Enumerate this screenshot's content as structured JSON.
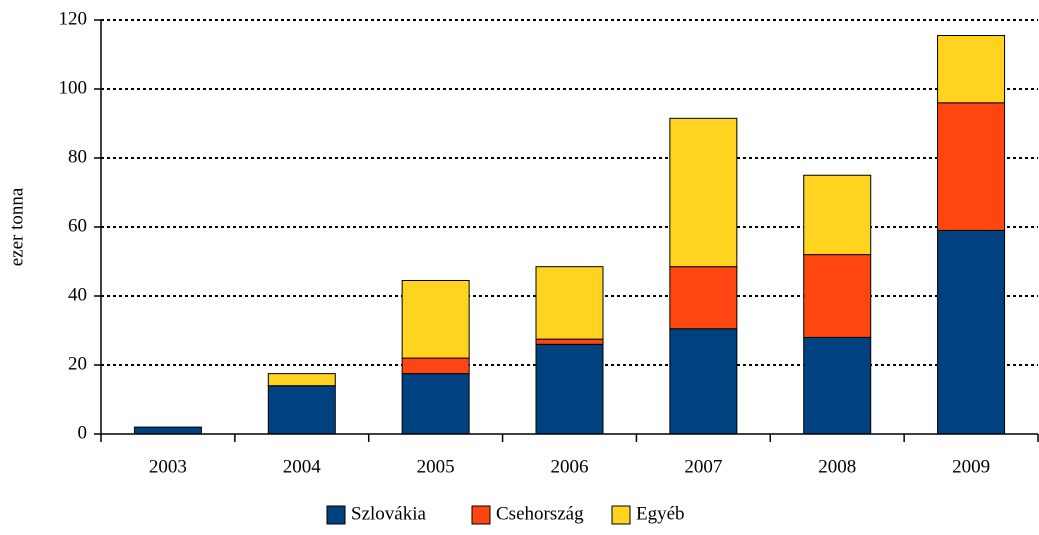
{
  "chart_data": {
    "type": "stacked-bar",
    "y_label": "ezer tonna",
    "categories": [
      "2003",
      "2004",
      "2005",
      "2006",
      "2007",
      "2008",
      "2009"
    ],
    "series": [
      {
        "name": "Szlovákia",
        "color": "#00427f",
        "values": [
          2,
          14,
          17.5,
          26,
          30.5,
          28,
          59
        ]
      },
      {
        "name": "Csehország",
        "color": "#ff4611",
        "values": [
          0,
          0,
          4.5,
          1.5,
          18,
          24,
          37
        ]
      },
      {
        "name": "Egyéb",
        "color": "#ffd320",
        "values": [
          0,
          3.5,
          22.5,
          21,
          43,
          23,
          19.5
        ]
      }
    ],
    "ylim": [
      0,
      120
    ],
    "yticks": [
      0,
      20,
      40,
      60,
      80,
      100,
      120
    ],
    "grid": true
  }
}
